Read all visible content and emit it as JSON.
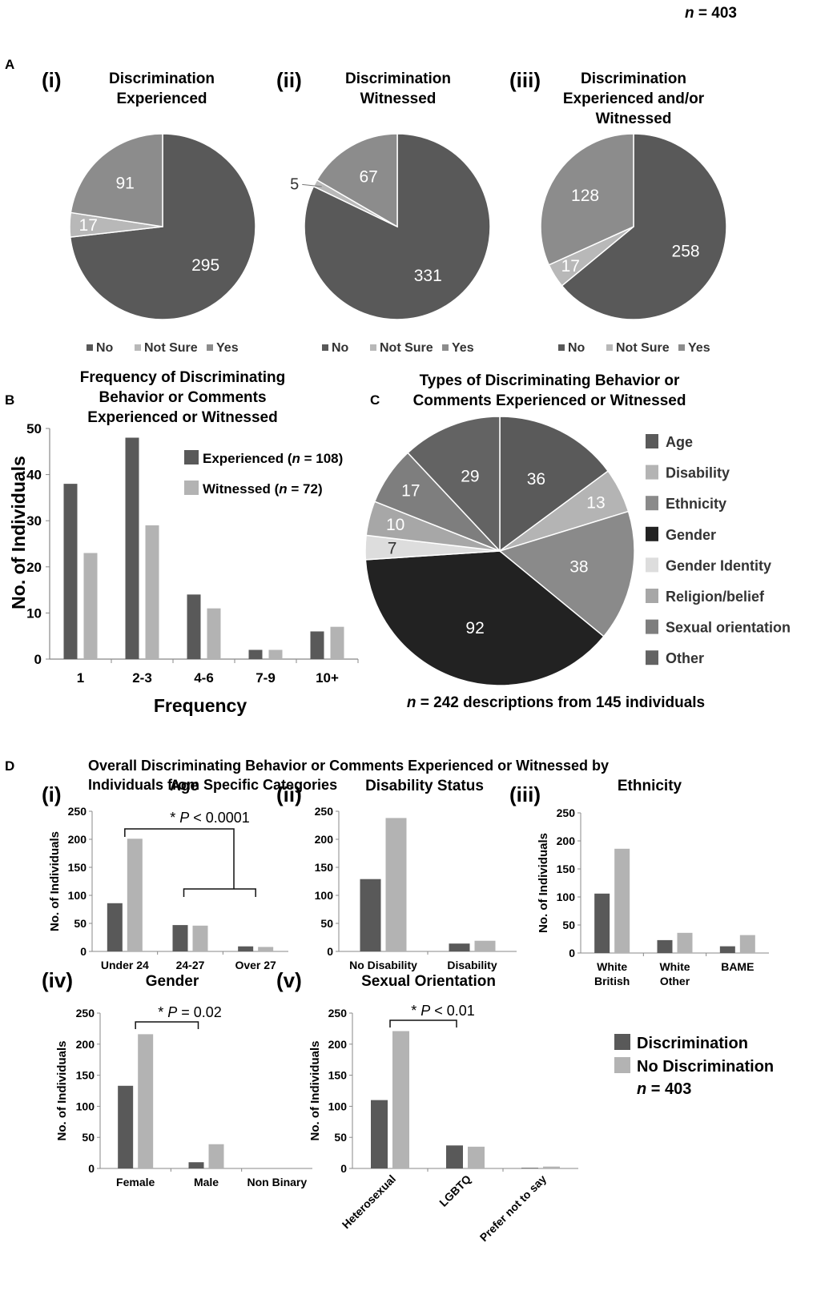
{
  "header": {
    "n_prefix": "n",
    "n_suffix": " = 403"
  },
  "panel_labels": {
    "a": "A",
    "b": "B",
    "c": "C",
    "d": "D"
  },
  "colors": {
    "no": "#595959",
    "not_sure": "#b8b8b8",
    "yes": "#8c8c8c",
    "discrimination": "#595959",
    "no_discrimination": "#b3b3b3"
  },
  "chart_data": [
    {
      "id": "a_i",
      "type": "pie",
      "roman": "(i)",
      "title_lines": [
        "Discrimination",
        "Experienced"
      ],
      "slices": [
        {
          "label": "No",
          "value": 295
        },
        {
          "label": "Not Sure",
          "value": 17
        },
        {
          "label": "Yes",
          "value": 91
        }
      ],
      "legend": [
        "No",
        "Not Sure",
        "Yes"
      ],
      "legend_position": "bottom"
    },
    {
      "id": "a_ii",
      "type": "pie",
      "roman": "(ii)",
      "title_lines": [
        "Discrimination",
        "Witnessed"
      ],
      "slices": [
        {
          "label": "No",
          "value": 331
        },
        {
          "label": "Not Sure",
          "value": 5
        },
        {
          "label": "Yes",
          "value": 67
        }
      ],
      "legend": [
        "No",
        "Not Sure",
        "Yes"
      ],
      "legend_position": "bottom"
    },
    {
      "id": "a_iii",
      "type": "pie",
      "roman": "(iii)",
      "title_lines": [
        "Discrimination",
        "Experienced and/or",
        "Witnessed"
      ],
      "slices": [
        {
          "label": "No",
          "value": 258
        },
        {
          "label": "Not Sure",
          "value": 17
        },
        {
          "label": "Yes",
          "value": 128
        }
      ],
      "legend": [
        "No",
        "Not Sure",
        "Yes"
      ],
      "legend_position": "bottom"
    },
    {
      "id": "b",
      "type": "bar",
      "title_lines": [
        "Frequency of Discriminating",
        "Behavior or Comments",
        "Experienced or Witnessed"
      ],
      "categories": [
        "1",
        "2-3",
        "4-6",
        "7-9",
        "10+"
      ],
      "series": [
        {
          "name": "Experienced",
          "n": "108",
          "values": [
            38,
            48,
            14,
            2,
            6
          ]
        },
        {
          "name": "Witnessed",
          "n": "72",
          "values": [
            23,
            29,
            11,
            2,
            7
          ]
        }
      ],
      "xlabel": "Frequency",
      "ylabel": "No. of Individuals",
      "ylim": [
        0,
        50
      ],
      "yticks": [
        0,
        10,
        20,
        30,
        40,
        50
      ],
      "legend_position": "top-right"
    },
    {
      "id": "c",
      "type": "pie",
      "title_lines": [
        "Types of Discriminating Behavior or",
        "Comments Experienced or Witnessed"
      ],
      "slices": [
        {
          "label": "Age",
          "value": 36,
          "color": "#5a5a5a"
        },
        {
          "label": "Disability",
          "value": 13,
          "color": "#b4b4b4"
        },
        {
          "label": "Ethnicity",
          "value": 38,
          "color": "#8a8a8a"
        },
        {
          "label": "Gender",
          "value": 92,
          "color": "#222222"
        },
        {
          "label": "Gender Identity",
          "value": 7,
          "color": "#dddddd"
        },
        {
          "label": "Religion/belief",
          "value": 10,
          "color": "#a7a7a7"
        },
        {
          "label": "Sexual orientation",
          "value": 17,
          "color": "#7e7e7e"
        },
        {
          "label": "Other",
          "value": 29,
          "color": "#636363"
        }
      ],
      "footnote_n": "n",
      "footnote_rest": " = 242 descriptions from 145 individuals",
      "legend_position": "right"
    },
    {
      "id": "d_i",
      "type": "bar",
      "roman": "(i)",
      "title": "Age",
      "categories": [
        "Under 24",
        "24-27",
        "Over 27"
      ],
      "series": [
        {
          "name": "Discrimination",
          "values": [
            86,
            47,
            9
          ]
        },
        {
          "name": "No Discrimination",
          "values": [
            201,
            46,
            8
          ]
        }
      ],
      "ylabel": "No. of Individuals",
      "ylim": [
        0,
        250
      ],
      "yticks": [
        0,
        50,
        100,
        150,
        200,
        250
      ],
      "annotation": {
        "star": "*",
        "p": "P",
        "rest": " < 0.0001"
      }
    },
    {
      "id": "d_ii",
      "type": "bar",
      "roman": "(ii)",
      "title": "Disability Status",
      "categories": [
        "No Disability",
        "Disability"
      ],
      "series": [
        {
          "name": "Discrimination",
          "values": [
            129,
            14
          ]
        },
        {
          "name": "No Discrimination",
          "values": [
            238,
            19
          ]
        }
      ],
      "ylim": [
        0,
        250
      ],
      "yticks": [
        0,
        50,
        100,
        150,
        200,
        250
      ]
    },
    {
      "id": "d_iii",
      "type": "bar",
      "roman": "(iii)",
      "title": "Ethnicity",
      "categories": [
        [
          "White",
          "British"
        ],
        [
          "White",
          "Other"
        ],
        [
          "BAME"
        ]
      ],
      "series": [
        {
          "name": "Discrimination",
          "values": [
            106,
            23,
            12
          ]
        },
        {
          "name": "No Discrimination",
          "values": [
            186,
            36,
            32
          ]
        }
      ],
      "ylabel": "No. of Individuals",
      "ylim": [
        0,
        250
      ],
      "yticks": [
        0,
        50,
        100,
        150,
        200,
        250
      ]
    },
    {
      "id": "d_iv",
      "type": "bar",
      "roman": "(iv)",
      "title": "Gender",
      "categories": [
        "Female",
        "Male",
        "Non Binary"
      ],
      "series": [
        {
          "name": "Discrimination",
          "values": [
            133,
            10,
            0
          ]
        },
        {
          "name": "No Discrimination",
          "values": [
            216,
            39,
            0
          ]
        }
      ],
      "ylabel": "No. of Individuals",
      "ylim": [
        0,
        250
      ],
      "yticks": [
        0,
        50,
        100,
        150,
        200,
        250
      ],
      "annotation": {
        "star": "*",
        "p": "P",
        "rest": " = 0.02"
      }
    },
    {
      "id": "d_v",
      "type": "bar",
      "roman": "(v)",
      "title": "Sexual Orientation",
      "categories": [
        "Heterosexual",
        "LGBTQ",
        "Prefer not to say"
      ],
      "series": [
        {
          "name": "Discrimination",
          "values": [
            110,
            37,
            1
          ]
        },
        {
          "name": "No Discrimination",
          "values": [
            221,
            35,
            3
          ]
        }
      ],
      "ylabel": "No. of Individuals",
      "ylim": [
        0,
        250
      ],
      "yticks": [
        0,
        50,
        100,
        150,
        200,
        250
      ],
      "annotation": {
        "star": "*",
        "p": "P",
        "rest": " < 0.01"
      }
    }
  ],
  "panel_d_title_lines": [
    "Overall Discriminating Behavior or Comments Experienced or Witnessed by",
    "Individuals from Specific Categories"
  ],
  "panel_d_legend": {
    "items": [
      "Discrimination",
      "No Discrimination"
    ],
    "n_prefix": "n",
    "n_suffix": " = 403"
  }
}
